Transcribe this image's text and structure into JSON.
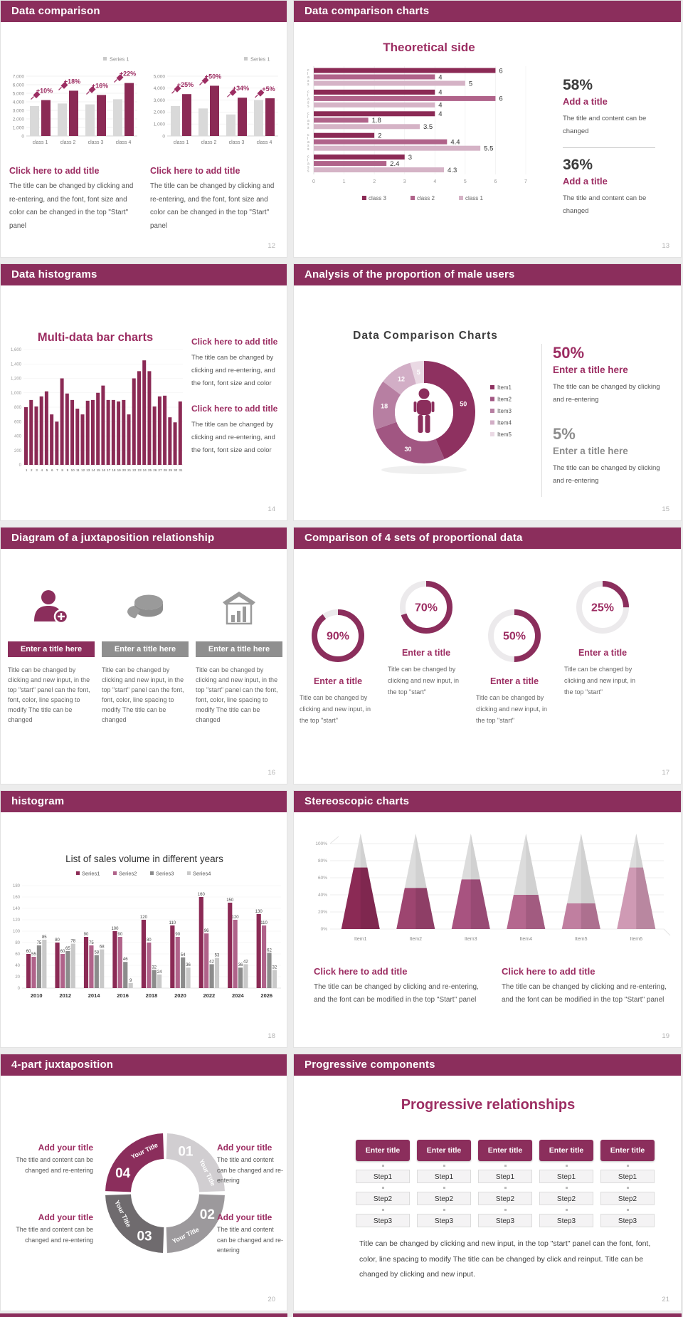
{
  "colors": {
    "header_bg": "#8b2e5c",
    "accent": "#9c2d62",
    "dark_text": "#3d3d3d",
    "gray_text": "#595959",
    "series_dark": "#8b2a55",
    "series_mid": "#b0638a",
    "series_light": "#d5b3c6",
    "bar_gray": "#d9d9d9",
    "donut_colors": [
      "#8e3160",
      "#a15682",
      "#b77fa2",
      "#d2aec6",
      "#ead9e4"
    ],
    "grouped_colors": [
      "#8b2a55",
      "#b0638a",
      "#8c8c8c",
      "#c9c9c9"
    ],
    "cone_colors": [
      "#8b2a55",
      "#9d4570",
      "#a85380",
      "#b4678e",
      "#c07fa0",
      "#cf9ab4"
    ],
    "quad_colors": [
      "#d1ced1",
      "#9c999c",
      "#6f6b6e",
      "#8b2e5c"
    ]
  },
  "slides": [
    {
      "header": "Data comparison",
      "page": "12",
      "blocks": [
        {
          "title": "Click here to add title",
          "body": "The title can be changed by clicking and re-entering, and the font, font size and color can be changed in the top \"Start\" panel"
        },
        {
          "title": "Click here to add title",
          "body": "The title can be changed by clicking and re-entering, and the font, font size and color can be changed in the top \"Start\" panel"
        }
      ]
    },
    {
      "header": "Data comparison charts",
      "page": "13",
      "chart_title": "Theoretical side",
      "stats": [
        {
          "value": "58%",
          "title": "Add a title",
          "body": "The title and content can be changed"
        },
        {
          "value": "36%",
          "title": "Add a title",
          "body": "The title and content can be changed"
        }
      ]
    },
    {
      "header": "Data histograms",
      "page": "14",
      "chart_title": "Multi-data bar charts",
      "blocks": [
        {
          "title": "Click here to add title",
          "body": "The title can be changed by clicking and re-entering, and the font, font size and color"
        },
        {
          "title": "Click here to add title",
          "body": "The title can be changed by clicking and re-entering, and the font, font size and color"
        }
      ]
    },
    {
      "header": "Analysis of the proportion of male users",
      "page": "15",
      "chart_title": "Data Comparison Charts",
      "legend": [
        "Item1",
        "Item2",
        "Item3",
        "Item4",
        "Item5"
      ],
      "stats": [
        {
          "value": "50%",
          "title": "Enter a title here",
          "body": "The title can be changed by clicking and re-entering"
        },
        {
          "value": "5%",
          "title": "Enter a title here",
          "body": "The title can be changed by clicking and re-entering"
        }
      ]
    },
    {
      "header": "Diagram of a juxtaposition relationship",
      "page": "16",
      "items": [
        {
          "icon": "person-plus-icon",
          "banner": "Enter a title here",
          "body": "Title can be changed by clicking and new input, in the top \"start\" panel can the font, font, color, line spacing to modify The title can be changed"
        },
        {
          "icon": "pie-3d-icon",
          "banner": "Enter a title here",
          "body": "Title can be changed by clicking and new input, in the top \"start\" panel can the font, font, color, line spacing to modify The title can be changed"
        },
        {
          "icon": "building-chart-icon",
          "banner": "Enter a title here",
          "body": "Title can be changed by clicking and new input, in the top \"start\" panel can the font, font, color, line spacing to modify The title can be changed"
        }
      ]
    },
    {
      "header": "Comparison of 4 sets of proportional data",
      "page": "17",
      "rings": [
        {
          "pct": 90,
          "label": "90%",
          "title": "Enter a title",
          "body": "Title can be changed by clicking and new input, in the top \"start\""
        },
        {
          "pct": 70,
          "label": "70%",
          "title": "Enter a title",
          "body": "Title can be changed by clicking and new input, in the top \"start\""
        },
        {
          "pct": 50,
          "label": "50%",
          "title": "Enter a title",
          "body": "Title can be changed by clicking and new input, in the top \"start\""
        },
        {
          "pct": 25,
          "label": "25%",
          "title": "Enter a title",
          "body": "Title can be changed by clicking and new input, in the top \"start\""
        }
      ]
    },
    {
      "header": "histogram",
      "page": "18",
      "chart_title": "List of sales volume in different years"
    },
    {
      "header": "Stereoscopic charts",
      "page": "19",
      "blocks": [
        {
          "title": "Click here to add title",
          "body": "The title can be changed by clicking and re-entering, and the font can be modified in the top \"Start\" panel"
        },
        {
          "title": "Click here to add title",
          "body": "The title can be changed by clicking and re-entering, and the font can be modified in the top \"Start\" panel"
        }
      ]
    },
    {
      "header": "4-part juxtaposition",
      "page": "20",
      "callouts": [
        {
          "title": "Add your title",
          "body": "The title and content can be changed and re-entering"
        },
        {
          "title": "Add your title",
          "body": "The title and content can be changed and re-entering"
        },
        {
          "title": "Add your title",
          "body": "The title and content can be changed and re-entering"
        },
        {
          "title": "Add your title",
          "body": "The title and content can be changed and re-entering"
        }
      ]
    },
    {
      "header": "Progressive components",
      "page": "21",
      "title": "Progressive relationships",
      "columns": [
        {
          "header": "Enter title",
          "steps": [
            "Step1",
            "Step2",
            "Step3"
          ]
        },
        {
          "header": "Enter title",
          "steps": [
            "Step1",
            "Step2",
            "Step3"
          ]
        },
        {
          "header": "Enter title",
          "steps": [
            "Step1",
            "Step2",
            "Step3"
          ]
        },
        {
          "header": "Enter title",
          "steps": [
            "Step1",
            "Step2",
            "Step3"
          ]
        },
        {
          "header": "Enter title",
          "steps": [
            "Step1",
            "Step2",
            "Step3"
          ]
        }
      ],
      "body": "Title can be changed by clicking and new input, in the top \"start\" panel can the font, font, color, line spacing to modify The title can be changed by click and reinput. Title can be changed by clicking and new input."
    }
  ],
  "chart_data": [
    {
      "id": "mini-col-1",
      "type": "bar",
      "legend": "Series 1",
      "categories": [
        "class 1",
        "class 2",
        "class 3",
        "class 4"
      ],
      "series": [
        {
          "name": "base",
          "values": [
            3500,
            3800,
            3700,
            4300
          ]
        },
        {
          "name": "Series 1",
          "values": [
            4200,
            5300,
            4800,
            6200
          ]
        }
      ],
      "growth_labels": [
        "+10%",
        "+18%",
        "+16%",
        "+22%"
      ],
      "ylim": [
        0,
        7000
      ],
      "ystep": 1000
    },
    {
      "id": "mini-col-2",
      "type": "bar",
      "legend": "Series 1",
      "categories": [
        "class 1",
        "class 2",
        "class 3",
        "class 4"
      ],
      "series": [
        {
          "name": "base",
          "values": [
            2500,
            2300,
            1800,
            3000
          ]
        },
        {
          "name": "Series 1",
          "values": [
            3500,
            4200,
            3200,
            3150
          ]
        }
      ],
      "growth_labels": [
        "+25%",
        "+50%",
        "+34%",
        "+5%"
      ],
      "ylim": [
        0,
        5000
      ],
      "ystep": 1000
    },
    {
      "id": "theoretical-hbar",
      "type": "bar-horizontal",
      "title": "Theoretical side",
      "categories": [
        "class…",
        "class…",
        "class…",
        "class…",
        "class…"
      ],
      "series": [
        {
          "name": "class 3",
          "values": [
            6,
            4,
            4,
            2,
            3
          ]
        },
        {
          "name": "class 2",
          "values": [
            4,
            6,
            1.8,
            4.4,
            2.4
          ]
        },
        {
          "name": "class 1",
          "values": [
            5,
            4,
            3.5,
            5.5,
            4.3
          ]
        }
      ],
      "xlim": [
        0,
        7
      ],
      "xstep": 1
    },
    {
      "id": "multi-bar",
      "type": "bar",
      "title": "Multi-data bar charts",
      "x": [
        1,
        2,
        3,
        4,
        5,
        6,
        7,
        8,
        9,
        10,
        11,
        12,
        13,
        14,
        15,
        16,
        17,
        18,
        19,
        20,
        21,
        22,
        23,
        24,
        25,
        26,
        27,
        28,
        29,
        30,
        31
      ],
      "values": [
        800,
        900,
        810,
        950,
        1020,
        700,
        600,
        1200,
        990,
        900,
        780,
        700,
        890,
        900,
        1000,
        1100,
        900,
        900,
        880,
        900,
        700,
        1200,
        1300,
        1450,
        1300,
        810,
        950,
        960,
        660,
        590,
        880
      ],
      "ylim": [
        0,
        1600
      ],
      "ystep": 200
    },
    {
      "id": "male-donut",
      "type": "pie",
      "title": "Data Comparison Charts",
      "labels": [
        "Item1",
        "Item2",
        "Item3",
        "Item4",
        "Item5"
      ],
      "values": [
        50,
        30,
        18,
        12,
        5
      ]
    },
    {
      "id": "progress-rings",
      "type": "pie",
      "values": [
        90,
        70,
        50,
        25
      ]
    },
    {
      "id": "sales-grouped",
      "type": "bar",
      "title": "List of sales volume in different years",
      "categories": [
        "2010",
        "2012",
        "2014",
        "2016",
        "2018",
        "2020",
        "2022",
        "2024",
        "2026"
      ],
      "series": [
        {
          "name": "Series1",
          "values": [
            60,
            80,
            90,
            100,
            120,
            110,
            160,
            150,
            130
          ]
        },
        {
          "name": "Series2",
          "values": [
            55,
            60,
            75,
            90,
            80,
            90,
            96,
            120,
            110
          ]
        },
        {
          "name": "Series3",
          "values": [
            75,
            65,
            58,
            46,
            32,
            54,
            42,
            36,
            62
          ]
        },
        {
          "name": "Series4",
          "values": [
            85,
            78,
            68,
            9,
            24,
            36,
            53,
            42,
            32
          ]
        }
      ],
      "ylim": [
        0,
        180
      ],
      "ystep": 20
    },
    {
      "id": "cones",
      "type": "cone",
      "categories": [
        "Item1",
        "Item2",
        "Item3",
        "Item4",
        "Item5",
        "Item6"
      ],
      "values": [
        72,
        48,
        58,
        40,
        30,
        72
      ],
      "ylim": [
        0,
        100
      ],
      "ystep": 20
    },
    {
      "id": "quad-donut",
      "type": "pie",
      "segments": [
        {
          "num": "01",
          "label": "Your Title"
        },
        {
          "num": "02",
          "label": "Your Title"
        },
        {
          "num": "03",
          "label": "Your Title"
        },
        {
          "num": "04",
          "label": "Your Title"
        }
      ]
    }
  ]
}
